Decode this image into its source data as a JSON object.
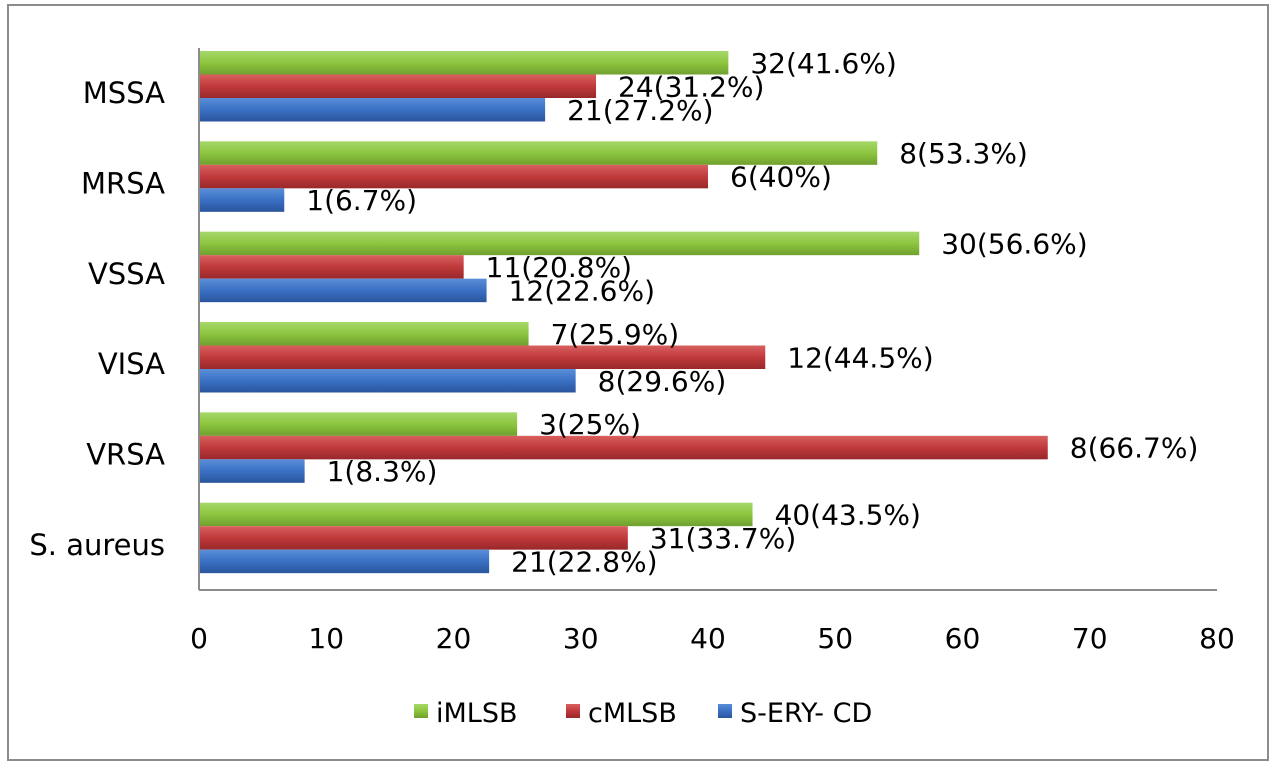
{
  "chart_data": {
    "type": "bar",
    "orientation": "horizontal",
    "categories": [
      "MSSA",
      "MRSA",
      "VSSA",
      "VISA",
      "VRSA",
      "S. aureus"
    ],
    "series": [
      {
        "name": "iMLSB",
        "color": "#8cc63f",
        "values": [
          41.6,
          53.3,
          56.6,
          25.9,
          25,
          43.5
        ],
        "labels": [
          "32(41.6%)",
          "8(53.3%)",
          "30(56.6%)",
          "7(25.9%)",
          "3(25%)",
          "40(43.5%)"
        ]
      },
      {
        "name": "cMLSB",
        "color": "#c0393b",
        "values": [
          31.2,
          40,
          20.8,
          44.5,
          66.7,
          33.7
        ],
        "labels": [
          "24(31.2%)",
          "6(40%)",
          "11(20.8%)",
          "12(44.5%)",
          "8(66.7%)",
          "31(33.7%)"
        ]
      },
      {
        "name": "S-ERY- CD",
        "color": "#3a70c4",
        "values": [
          27.2,
          6.7,
          22.6,
          29.6,
          8.3,
          22.8
        ],
        "labels": [
          "21(27.2%)",
          "1(6.7%)",
          "12(22.6%)",
          "8(29.6%)",
          "1(8.3%)",
          "21(22.8%)"
        ]
      }
    ],
    "xlim": [
      0,
      80
    ],
    "xticks": [
      "0",
      "10",
      "20",
      "30",
      "40",
      "50",
      "60",
      "70",
      "80"
    ],
    "title": "",
    "xlabel": "",
    "ylabel": "",
    "grid": false,
    "legend_position": "bottom"
  }
}
